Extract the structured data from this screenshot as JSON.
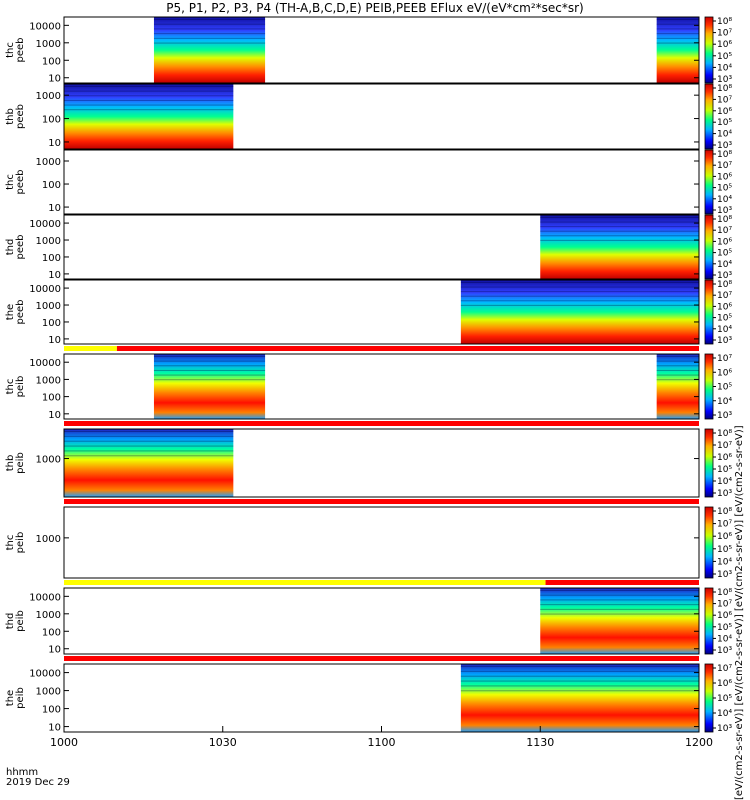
{
  "title": "P5, P1, P2, P3, P4 (TH-A,B,C,D,E) PEIB,PEEB EFlux eV/(eV*cm²*sec*sr)",
  "colorbar_unit": "[eV/(cm2-s-sr-eV)] [eV/(cm2-s-sr-eV)] [eV/(cm2-s-sr-eV)] [eV/(cm2-s-sr-eV)]",
  "x_axis": {
    "label_line1": "hhmm",
    "label_line2": "2019 Dec 29"
  },
  "colors": {
    "background": "#ffffff",
    "frame": "#000000",
    "flag_red": "#ff0000",
    "flag_yellow": "#ffff00"
  },
  "chart_data": {
    "type": "heatmap",
    "x_range": [
      "10:00",
      "12:00"
    ],
    "x_ticks": [
      {
        "t": "10:00",
        "label": "1000"
      },
      {
        "t": "10:30",
        "label": "1030"
      },
      {
        "t": "11:00",
        "label": "1100"
      },
      {
        "t": "11:30",
        "label": "1130"
      },
      {
        "t": "12:00",
        "label": "1200"
      }
    ],
    "y_scale": "log",
    "colorbar_scale": "log",
    "panels": [
      {
        "probe": "thc",
        "product": "peeb",
        "ylabel": [
          "thc",
          "peeb"
        ],
        "ylim": [
          5,
          30000
        ],
        "yticks": [
          10,
          100,
          1000,
          10000
        ],
        "ytick_labels": [
          "10",
          "100",
          "1000",
          "10000"
        ],
        "cbar_labels": [
          "10³",
          "10⁴",
          "10⁵",
          "10⁶",
          "10⁷",
          "10⁸"
        ],
        "data_intervals": [
          [
            "10:17",
            "10:38"
          ],
          [
            "11:52",
            "12:00"
          ]
        ]
      },
      {
        "probe": "thb",
        "product": "peeb",
        "ylabel": [
          "thb",
          "peeb"
        ],
        "ylim": [
          5,
          3000
        ],
        "yticks": [
          10,
          100,
          1000
        ],
        "ytick_labels": [
          "10",
          "100",
          "1000"
        ],
        "cbar_labels": [
          "10³",
          "10⁴",
          "10⁵",
          "10⁶",
          "10⁷",
          "10⁸"
        ],
        "data_intervals": [
          [
            "10:00",
            "10:32"
          ]
        ]
      },
      {
        "probe": "thc",
        "product": "peeb",
        "ylabel": [
          "thc",
          "peeb"
        ],
        "ylim": [
          5,
          3000
        ],
        "yticks": [
          10,
          100,
          1000
        ],
        "ytick_labels": [
          "10",
          "100",
          "1000"
        ],
        "cbar_labels": [
          "10³",
          "10⁴",
          "10⁵",
          "10⁶",
          "10⁷",
          "10⁸"
        ],
        "data_intervals": []
      },
      {
        "probe": "thd",
        "product": "peeb",
        "ylabel": [
          "thd",
          "peeb"
        ],
        "ylim": [
          5,
          30000
        ],
        "yticks": [
          10,
          100,
          1000,
          10000
        ],
        "ytick_labels": [
          "10",
          "100",
          "1000",
          "10000"
        ],
        "cbar_labels": [
          "10³",
          "10⁴",
          "10⁵",
          "10⁶",
          "10⁷",
          "10⁸"
        ],
        "data_intervals": [
          [
            "11:30",
            "12:00"
          ]
        ]
      },
      {
        "probe": "the",
        "product": "peeb",
        "ylabel": [
          "the",
          "peeb"
        ],
        "ylim": [
          5,
          30000
        ],
        "yticks": [
          10,
          100,
          1000,
          10000
        ],
        "ytick_labels": [
          "10",
          "100",
          "1000",
          "10000"
        ],
        "cbar_labels": [
          "10³",
          "10⁴",
          "10⁵",
          "10⁶",
          "10⁷",
          "10⁸"
        ],
        "data_intervals": [
          [
            "11:15",
            "12:00"
          ]
        ]
      },
      {
        "probe": "thc",
        "product": "peib",
        "ylabel": [
          "thc",
          "peib"
        ],
        "ylim": [
          5,
          30000
        ],
        "yticks": [
          10,
          100,
          1000,
          10000
        ],
        "ytick_labels": [
          "10",
          "100",
          "1000",
          "10000"
        ],
        "cbar_labels": [
          "10³",
          "10⁴",
          "10⁵",
          "10⁶",
          "10⁷"
        ],
        "data_intervals": [
          [
            "10:17",
            "10:38"
          ],
          [
            "11:52",
            "12:00"
          ]
        ]
      },
      {
        "probe": "thb",
        "product": "peib",
        "ylabel": [
          "thb",
          "peib"
        ],
        "ylim": [
          50,
          10000
        ],
        "yticks": [
          1000
        ],
        "ytick_labels": [
          "1000"
        ],
        "cbar_labels": [
          "10³",
          "10⁴",
          "10⁵",
          "10⁶",
          "10⁷",
          "10⁸"
        ],
        "data_intervals": [
          [
            "10:00",
            "10:32"
          ]
        ]
      },
      {
        "probe": "thc",
        "product": "peib",
        "ylabel": [
          "thc",
          "peib"
        ],
        "ylim": [
          50,
          10000
        ],
        "yticks": [
          1000
        ],
        "ytick_labels": [
          "1000"
        ],
        "cbar_labels": [
          "10³",
          "10⁴",
          "10⁵",
          "10⁶",
          "10⁷",
          "10⁸"
        ],
        "data_intervals": []
      },
      {
        "probe": "thd",
        "product": "peib",
        "ylabel": [
          "thd",
          "peib"
        ],
        "ylim": [
          5,
          30000
        ],
        "yticks": [
          10,
          100,
          1000,
          10000
        ],
        "ytick_labels": [
          "10",
          "100",
          "1000",
          "10000"
        ],
        "cbar_labels": [
          "10³",
          "10⁴",
          "10⁵",
          "10⁶",
          "10⁷",
          "10⁸"
        ],
        "data_intervals": [
          [
            "11:30",
            "12:00"
          ]
        ]
      },
      {
        "probe": "the",
        "product": "peib",
        "ylabel": [
          "the",
          "peib"
        ],
        "ylim": [
          5,
          30000
        ],
        "yticks": [
          10,
          100,
          1000,
          10000
        ],
        "ytick_labels": [
          "10",
          "100",
          "1000",
          "10000"
        ],
        "cbar_labels": [
          "10³",
          "10⁴",
          "10⁵",
          "10⁶",
          "10⁷"
        ],
        "data_intervals": [
          [
            "11:15",
            "12:00"
          ]
        ]
      }
    ],
    "flag_bars": [
      {
        "after_panel": 4,
        "segments": [
          {
            "from": "10:00",
            "to": "10:10",
            "color": "yellow"
          },
          {
            "from": "10:10",
            "to": "12:00",
            "color": "red"
          }
        ]
      },
      {
        "after_panel": 5,
        "segments": [
          {
            "from": "10:00",
            "to": "12:00",
            "color": "red"
          }
        ]
      },
      {
        "after_panel": 6,
        "segments": [
          {
            "from": "10:00",
            "to": "12:00",
            "color": "red"
          }
        ]
      },
      {
        "after_panel": 7,
        "segments": [
          {
            "from": "10:00",
            "to": "11:31",
            "color": "yellow"
          },
          {
            "from": "11:31",
            "to": "12:00",
            "color": "red"
          }
        ]
      },
      {
        "after_panel": 8,
        "segments": [
          {
            "from": "10:00",
            "to": "12:00",
            "color": "red"
          }
        ]
      }
    ]
  }
}
